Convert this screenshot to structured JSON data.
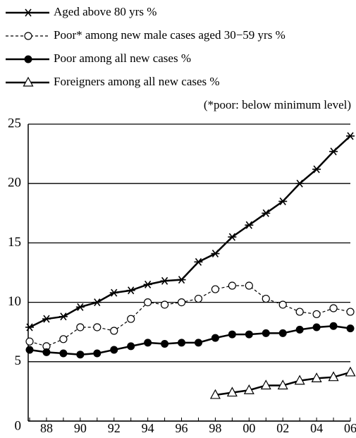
{
  "chart_data": {
    "type": "line",
    "annotation": "(*poor: below minimum level)",
    "categories": [
      null,
      "88",
      null,
      "90",
      null,
      "92",
      null,
      "94",
      null,
      "96",
      null,
      "98",
      null,
      "00",
      null,
      "02",
      null,
      "04",
      null,
      "06"
    ],
    "ylim": [
      0,
      25
    ],
    "yticks": [
      0,
      5,
      10,
      15,
      20,
      25
    ],
    "grid": true,
    "series": [
      {
        "name": "Aged above 80 yrs %",
        "color": "#000000",
        "marker": "star",
        "dashed": false,
        "values": [
          7.9,
          8.6,
          8.8,
          9.6,
          10.0,
          10.8,
          11.0,
          11.5,
          11.8,
          11.9,
          13.4,
          14.1,
          15.5,
          16.5,
          17.5,
          18.5,
          20.0,
          21.2,
          22.7,
          24.0
        ]
      },
      {
        "name": "Poor* among new male cases aged 30−59 yrs %",
        "color": "#000000",
        "marker": "open-circle",
        "dashed": true,
        "values": [
          6.7,
          6.3,
          6.9,
          7.9,
          7.9,
          7.6,
          8.6,
          10.0,
          9.8,
          10.0,
          10.3,
          11.1,
          11.4,
          11.4,
          10.3,
          9.8,
          9.2,
          9.0,
          9.5,
          9.2
        ]
      },
      {
        "name": "Poor among all new cases %",
        "color": "#000000",
        "marker": "circle",
        "dashed": false,
        "values": [
          6.0,
          5.8,
          5.7,
          5.6,
          5.7,
          6.0,
          6.3,
          6.6,
          6.5,
          6.6,
          6.6,
          7.0,
          7.3,
          7.3,
          7.4,
          7.4,
          7.7,
          7.9,
          8.0,
          7.8
        ]
      },
      {
        "name": "Foreigners among all new cases %",
        "color": "#000000",
        "marker": "triangle",
        "dashed": false,
        "values": [
          null,
          null,
          null,
          null,
          null,
          null,
          null,
          null,
          null,
          null,
          null,
          2.2,
          2.4,
          2.6,
          3.0,
          3.0,
          3.4,
          3.6,
          3.7,
          4.1
        ]
      }
    ]
  }
}
